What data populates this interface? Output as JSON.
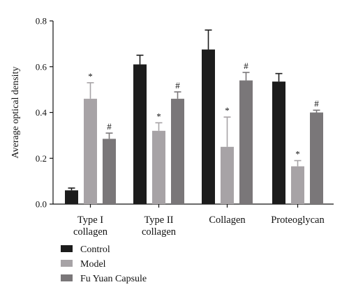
{
  "chart_data": {
    "type": "bar",
    "title": "",
    "xlabel": "",
    "ylabel": "Average optical density",
    "ylim": [
      0,
      0.8
    ],
    "yticks": [
      "0.0",
      "0.2",
      "0.4",
      "0.6",
      "0.8"
    ],
    "categories": [
      [
        "Type I",
        "collagen"
      ],
      [
        "Type II",
        "collagen"
      ],
      [
        "Collagen"
      ],
      [
        "Proteoglycan"
      ]
    ],
    "series": [
      {
        "name": "Control",
        "color": "#1c1c1c",
        "values": [
          0.06,
          0.61,
          0.675,
          0.535
        ],
        "errors": [
          0.01,
          0.04,
          0.085,
          0.035
        ],
        "marks": [
          "",
          "",
          "",
          ""
        ]
      },
      {
        "name": "Model",
        "color": "#a7a3a6",
        "values": [
          0.46,
          0.32,
          0.25,
          0.165
        ],
        "errors": [
          0.07,
          0.035,
          0.13,
          0.025
        ],
        "marks": [
          "*",
          "*",
          "*",
          "*"
        ]
      },
      {
        "name": "Fu Yuan Capsule",
        "color": "#7a7779",
        "values": [
          0.285,
          0.46,
          0.54,
          0.4
        ],
        "errors": [
          0.025,
          0.03,
          0.035,
          0.01
        ],
        "marks": [
          "#",
          "#",
          "#",
          "#"
        ]
      }
    ],
    "grid": false,
    "legend_position": "bottom-left"
  }
}
